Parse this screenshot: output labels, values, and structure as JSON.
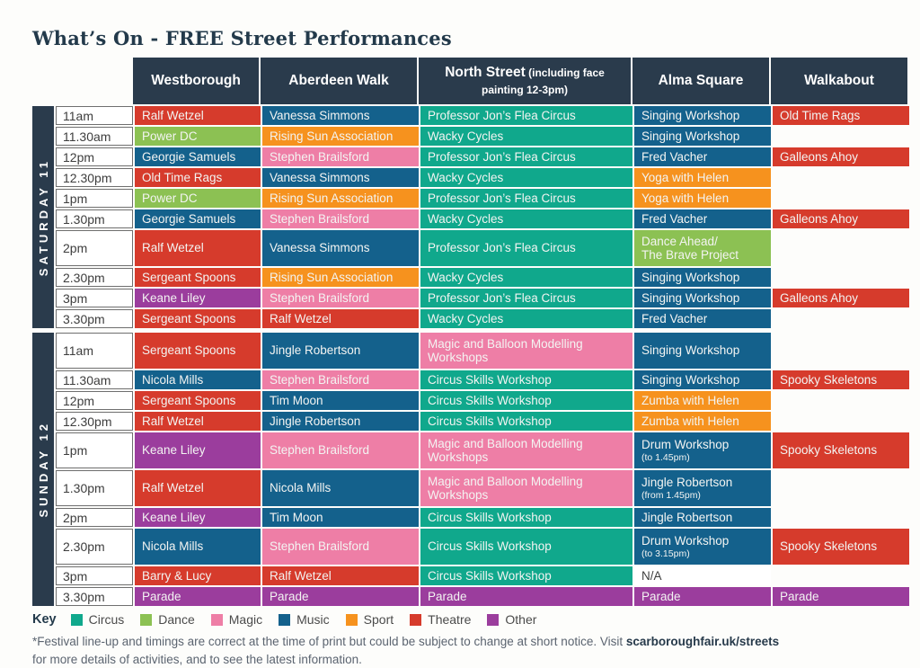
{
  "title": "What’s On - FREE Street Performances",
  "header": {
    "columns": [
      {
        "name": "Westborough"
      },
      {
        "name": "Aberdeen Walk"
      },
      {
        "name": "North Street",
        "note": "(including face painting 12-3pm)"
      },
      {
        "name": "Alma Square"
      },
      {
        "name": "Walkabout"
      }
    ]
  },
  "categories": {
    "circus": "#10a88c",
    "dance": "#8cc153",
    "magic": "#ee7ea6",
    "music": "#14618c",
    "sport": "#f6921e",
    "theatre": "#d63b2c",
    "other": "#9b3d9d",
    "na": "#ffffff"
  },
  "sections": [
    {
      "day": "SATURDAY 11",
      "rows": [
        {
          "time": "11am",
          "cells": [
            {
              "t": "Ralf Wetzel",
              "c": "theatre"
            },
            {
              "t": "Vanessa Simmons",
              "c": "music"
            },
            {
              "t": "Professor Jon’s Flea Circus",
              "c": "circus"
            },
            {
              "t": "Singing Workshop",
              "c": "music"
            },
            {
              "t": "Old Time Rags",
              "c": "theatre"
            }
          ]
        },
        {
          "time": "11.30am",
          "cells": [
            {
              "t": "Power DC",
              "c": "dance"
            },
            {
              "t": "Rising Sun Association",
              "c": "sport"
            },
            {
              "t": "Wacky Cycles",
              "c": "circus"
            },
            {
              "t": "Singing Workshop",
              "c": "music"
            },
            null
          ]
        },
        {
          "time": "12pm",
          "cells": [
            {
              "t": "Georgie Samuels",
              "c": "music"
            },
            {
              "t": "Stephen Brailsford",
              "c": "magic"
            },
            {
              "t": "Professor Jon’s Flea Circus",
              "c": "circus"
            },
            {
              "t": "Fred Vacher",
              "c": "music"
            },
            {
              "t": "Galleons Ahoy",
              "c": "theatre"
            }
          ]
        },
        {
          "time": "12.30pm",
          "cells": [
            {
              "t": "Old Time Rags",
              "c": "theatre"
            },
            {
              "t": "Vanessa Simmons",
              "c": "music"
            },
            {
              "t": "Wacky Cycles",
              "c": "circus"
            },
            {
              "t": "Yoga with Helen",
              "c": "sport"
            },
            null
          ]
        },
        {
          "time": "1pm",
          "cells": [
            {
              "t": "Power DC",
              "c": "dance"
            },
            {
              "t": "Rising Sun Association",
              "c": "sport"
            },
            {
              "t": "Professor Jon’s Flea Circus",
              "c": "circus"
            },
            {
              "t": "Yoga with Helen",
              "c": "sport"
            },
            null
          ]
        },
        {
          "time": "1.30pm",
          "cells": [
            {
              "t": "Georgie Samuels",
              "c": "music"
            },
            {
              "t": "Stephen Brailsford",
              "c": "magic"
            },
            {
              "t": "Wacky Cycles",
              "c": "circus"
            },
            {
              "t": "Fred Vacher",
              "c": "music"
            },
            {
              "t": "Galleons Ahoy",
              "c": "theatre"
            }
          ]
        },
        {
          "time": "2pm",
          "tall": true,
          "cells": [
            {
              "t": "Ralf Wetzel",
              "c": "theatre"
            },
            {
              "t": "Vanessa Simmons",
              "c": "music"
            },
            {
              "t": "Professor Jon’s Flea Circus",
              "c": "circus"
            },
            {
              "t": "Dance Ahead/\nThe Brave Project",
              "c": "dance"
            },
            null
          ]
        },
        {
          "time": "2.30pm",
          "cells": [
            {
              "t": "Sergeant Spoons",
              "c": "theatre"
            },
            {
              "t": "Rising Sun Association",
              "c": "sport"
            },
            {
              "t": "Wacky Cycles",
              "c": "circus"
            },
            {
              "t": "Singing Workshop",
              "c": "music"
            },
            null
          ]
        },
        {
          "time": "3pm",
          "cells": [
            {
              "t": "Keane Liley",
              "c": "other"
            },
            {
              "t": "Stephen Brailsford",
              "c": "magic"
            },
            {
              "t": "Professor Jon’s Flea Circus",
              "c": "circus"
            },
            {
              "t": "Singing Workshop",
              "c": "music"
            },
            {
              "t": "Galleons Ahoy",
              "c": "theatre"
            }
          ]
        },
        {
          "time": "3.30pm",
          "cells": [
            {
              "t": "Sergeant Spoons",
              "c": "theatre"
            },
            {
              "t": "Ralf Wetzel",
              "c": "theatre"
            },
            {
              "t": "Wacky Cycles",
              "c": "circus"
            },
            {
              "t": "Fred Vacher",
              "c": "music"
            },
            null
          ]
        }
      ]
    },
    {
      "day": "SUNDAY 12",
      "rows": [
        {
          "time": "11am",
          "tall": true,
          "cells": [
            {
              "t": "Sergeant Spoons",
              "c": "theatre"
            },
            {
              "t": "Jingle Robertson",
              "c": "music"
            },
            {
              "t": "Magic and Balloon Modelling Workshops",
              "c": "magic"
            },
            {
              "t": "Singing Workshop",
              "c": "music"
            },
            null
          ]
        },
        {
          "time": "11.30am",
          "cells": [
            {
              "t": "Nicola Mills",
              "c": "music"
            },
            {
              "t": "Stephen Brailsford",
              "c": "magic"
            },
            {
              "t": "Circus Skills Workshop",
              "c": "circus"
            },
            {
              "t": "Singing Workshop",
              "c": "music"
            },
            {
              "t": "Spooky Skeletons",
              "c": "theatre"
            }
          ]
        },
        {
          "time": "12pm",
          "cells": [
            {
              "t": "Sergeant Spoons",
              "c": "theatre"
            },
            {
              "t": "Tim Moon",
              "c": "music"
            },
            {
              "t": "Circus Skills Workshop",
              "c": "circus"
            },
            {
              "t": "Zumba with Helen",
              "c": "sport"
            },
            null
          ]
        },
        {
          "time": "12.30pm",
          "cells": [
            {
              "t": "Ralf Wetzel",
              "c": "theatre"
            },
            {
              "t": "Jingle Robertson",
              "c": "music"
            },
            {
              "t": "Circus Skills Workshop",
              "c": "circus"
            },
            {
              "t": "Zumba with Helen",
              "c": "sport"
            },
            null
          ]
        },
        {
          "time": "1pm",
          "tall": true,
          "cells": [
            {
              "t": "Keane Liley",
              "c": "other"
            },
            {
              "t": "Stephen Brailsford",
              "c": "magic"
            },
            {
              "t": "Magic and Balloon Modelling Workshops",
              "c": "magic"
            },
            {
              "t": "Drum Workshop",
              "n": "(to 1.45pm)",
              "c": "music"
            },
            {
              "t": "Spooky Skeletons",
              "c": "theatre"
            }
          ]
        },
        {
          "time": "1.30pm",
          "tall": true,
          "cells": [
            {
              "t": "Ralf Wetzel",
              "c": "theatre"
            },
            {
              "t": "Nicola Mills",
              "c": "music"
            },
            {
              "t": "Magic and Balloon Modelling Workshops",
              "c": "magic"
            },
            {
              "t": "Jingle Robertson",
              "n": "(from 1.45pm)",
              "c": "music"
            },
            null
          ]
        },
        {
          "time": "2pm",
          "cells": [
            {
              "t": "Keane Liley",
              "c": "other"
            },
            {
              "t": "Tim Moon",
              "c": "music"
            },
            {
              "t": "Circus Skills Workshop",
              "c": "circus"
            },
            {
              "t": "Jingle Robertson",
              "c": "music"
            },
            null
          ]
        },
        {
          "time": "2.30pm",
          "tall": true,
          "cells": [
            {
              "t": "Nicola Mills",
              "c": "music"
            },
            {
              "t": "Stephen Brailsford",
              "c": "magic"
            },
            {
              "t": "Circus Skills Workshop",
              "c": "circus"
            },
            {
              "t": "Drum Workshop",
              "n": "(to 3.15pm)",
              "c": "music"
            },
            {
              "t": "Spooky Skeletons",
              "c": "theatre"
            }
          ]
        },
        {
          "time": "3pm",
          "cells": [
            {
              "t": "Barry & Lucy",
              "c": "theatre"
            },
            {
              "t": "Ralf Wetzel",
              "c": "theatre"
            },
            {
              "t": "Circus Skills Workshop",
              "c": "circus"
            },
            {
              "t": "N/A",
              "c": "na"
            },
            null
          ]
        },
        {
          "time": "3.30pm",
          "cells": [
            {
              "t": "Parade",
              "c": "other"
            },
            {
              "t": "Parade",
              "c": "other"
            },
            {
              "t": "Parade",
              "c": "other"
            },
            {
              "t": "Parade",
              "c": "other"
            },
            {
              "t": "Parade",
              "c": "other"
            }
          ]
        }
      ]
    }
  ],
  "key": {
    "label": "Key",
    "items": [
      {
        "label": "Circus",
        "cat": "circus"
      },
      {
        "label": "Dance",
        "cat": "dance"
      },
      {
        "label": "Magic",
        "cat": "magic"
      },
      {
        "label": "Music",
        "cat": "music"
      },
      {
        "label": "Sport",
        "cat": "sport"
      },
      {
        "label": "Theatre",
        "cat": "theatre"
      },
      {
        "label": "Other",
        "cat": "other"
      }
    ]
  },
  "footnote": {
    "body": "*Festival line-up and timings are correct at the time of print but could be subject to change at short notice. Visit ",
    "link": "scarboroughfair.uk/streets",
    "line2": "for more details of activities, and to see the latest information."
  }
}
